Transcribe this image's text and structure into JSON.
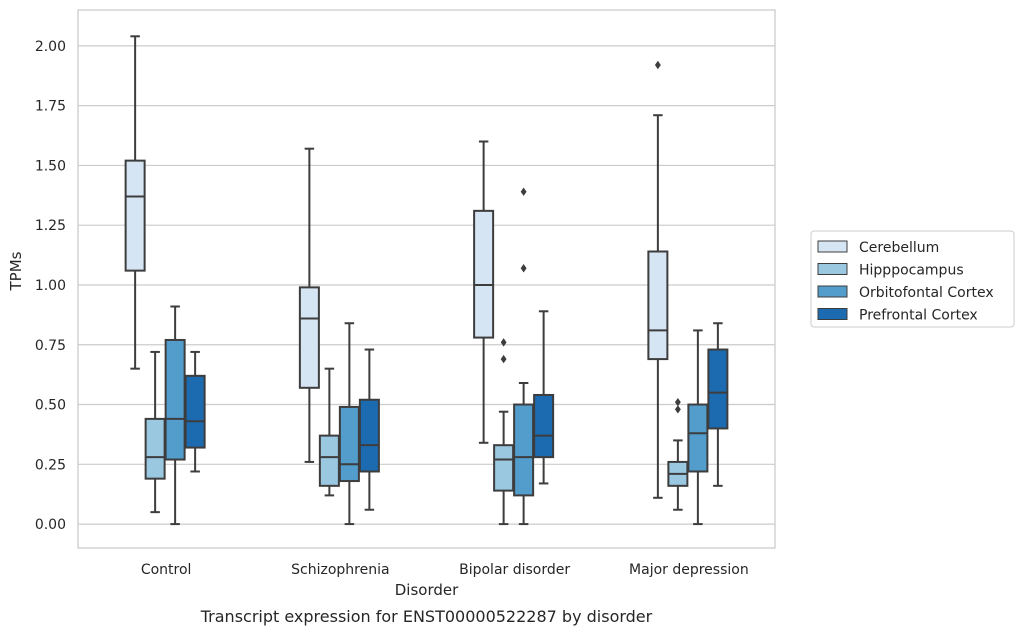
{
  "chart_data": {
    "type": "box",
    "xlabel": "Disorder",
    "ylabel": "TPMs",
    "caption": "Transcript expression for ENST00000522287 by disorder",
    "ylim": [
      -0.1,
      2.15
    ],
    "yticks": [
      "0.00",
      "0.25",
      "0.50",
      "0.75",
      "1.00",
      "1.25",
      "1.50",
      "1.75",
      "2.00"
    ],
    "grid": true,
    "legend_position": "right",
    "categories": [
      "Control",
      "Schizophrenia",
      "Bipolar disorder",
      "Major depression"
    ],
    "series": [
      {
        "name": "Cerebellum",
        "color": "#d6e5f4",
        "boxes": [
          {
            "whislo": 0.65,
            "q1": 1.06,
            "med": 1.37,
            "q3": 1.52,
            "whishi": 2.04,
            "fliers": []
          },
          {
            "whislo": 0.26,
            "q1": 0.57,
            "med": 0.86,
            "q3": 0.99,
            "whishi": 1.57,
            "fliers": []
          },
          {
            "whislo": 0.34,
            "q1": 0.78,
            "med": 1.0,
            "q3": 1.31,
            "whishi": 1.6,
            "fliers": []
          },
          {
            "whislo": 0.11,
            "q1": 0.69,
            "med": 0.81,
            "q3": 1.14,
            "whishi": 1.71,
            "fliers": [
              1.92
            ]
          }
        ]
      },
      {
        "name": "Hipppocampus",
        "color": "#9ac8e0",
        "boxes": [
          {
            "whislo": 0.05,
            "q1": 0.19,
            "med": 0.28,
            "q3": 0.44,
            "whishi": 0.72,
            "fliers": []
          },
          {
            "whislo": 0.12,
            "q1": 0.16,
            "med": 0.28,
            "q3": 0.37,
            "whishi": 0.65,
            "fliers": []
          },
          {
            "whislo": 0.0,
            "q1": 0.14,
            "med": 0.27,
            "q3": 0.33,
            "whishi": 0.47,
            "fliers": [
              0.69,
              0.76
            ]
          },
          {
            "whislo": 0.06,
            "q1": 0.16,
            "med": 0.21,
            "q3": 0.26,
            "whishi": 0.35,
            "fliers": [
              0.48,
              0.51
            ]
          }
        ]
      },
      {
        "name": "Orbitofontal Cortex",
        "color": "#529dcc",
        "boxes": [
          {
            "whislo": 0.0,
            "q1": 0.27,
            "med": 0.44,
            "q3": 0.77,
            "whishi": 0.91,
            "fliers": []
          },
          {
            "whislo": 0.0,
            "q1": 0.18,
            "med": 0.25,
            "q3": 0.49,
            "whishi": 0.84,
            "fliers": []
          },
          {
            "whislo": 0.0,
            "q1": 0.12,
            "med": 0.28,
            "q3": 0.5,
            "whishi": 0.59,
            "fliers": [
              1.07,
              1.39
            ]
          },
          {
            "whislo": 0.0,
            "q1": 0.22,
            "med": 0.38,
            "q3": 0.5,
            "whishi": 0.81,
            "fliers": []
          }
        ]
      },
      {
        "name": "Prefrontal Cortex",
        "color": "#1c6bb0",
        "boxes": [
          {
            "whislo": 0.22,
            "q1": 0.32,
            "med": 0.43,
            "q3": 0.62,
            "whishi": 0.72,
            "fliers": []
          },
          {
            "whislo": 0.06,
            "q1": 0.22,
            "med": 0.33,
            "q3": 0.52,
            "whishi": 0.73,
            "fliers": []
          },
          {
            "whislo": 0.17,
            "q1": 0.28,
            "med": 0.37,
            "q3": 0.54,
            "whishi": 0.89,
            "fliers": []
          },
          {
            "whislo": 0.16,
            "q1": 0.4,
            "med": 0.55,
            "q3": 0.73,
            "whishi": 0.84,
            "fliers": []
          }
        ]
      }
    ]
  }
}
